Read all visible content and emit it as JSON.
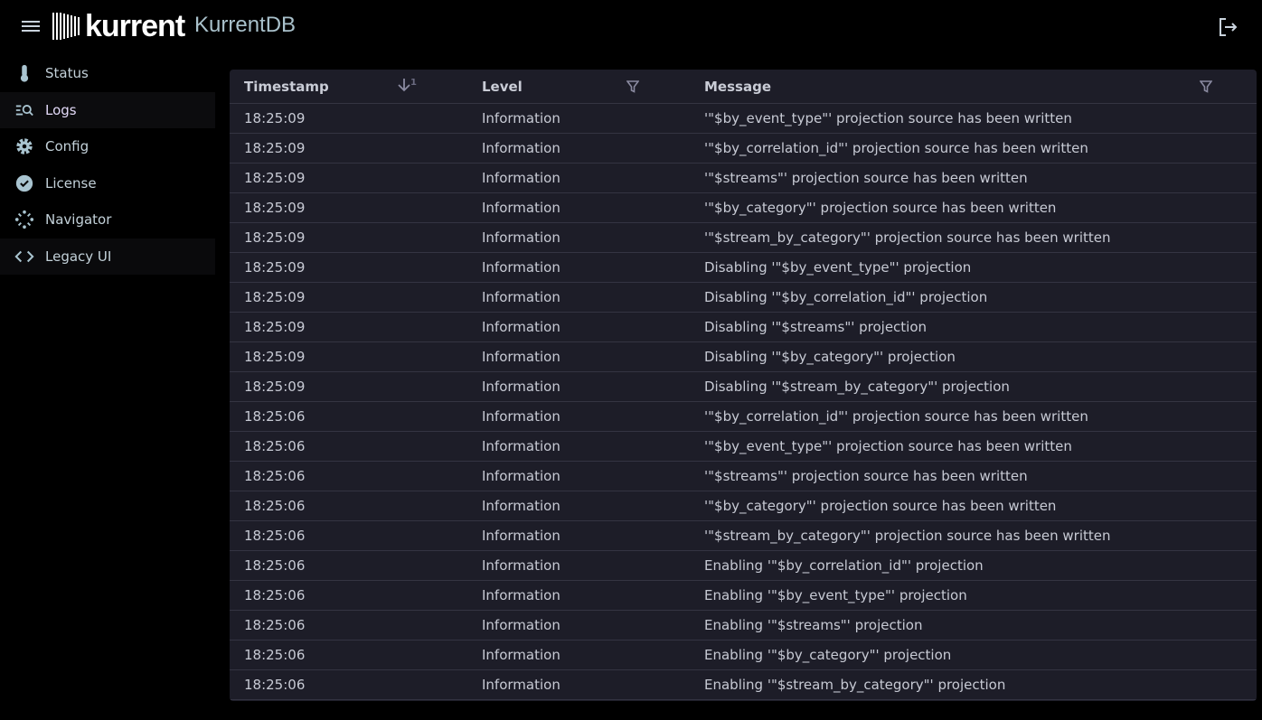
{
  "header": {
    "brand": "kurrent",
    "product": "KurrentDB"
  },
  "sidebar": {
    "items": [
      {
        "label": "Status",
        "icon": "thermometer-icon"
      },
      {
        "label": "Logs",
        "icon": "log-search-icon",
        "active": true
      },
      {
        "label": "Config",
        "icon": "gear-icon"
      },
      {
        "label": "License",
        "icon": "verified-badge-icon"
      },
      {
        "label": "Navigator",
        "icon": "navigator-icon"
      },
      {
        "label": "Legacy UI",
        "icon": "code-icon"
      }
    ]
  },
  "table": {
    "columns": {
      "timestamp": "Timestamp",
      "level": "Level",
      "message": "Message",
      "sort_index": "1"
    },
    "rows": [
      [
        "18:25:09",
        "Information",
        "'\"$by_event_type\"' projection source has been written"
      ],
      [
        "18:25:09",
        "Information",
        "'\"$by_correlation_id\"' projection source has been written"
      ],
      [
        "18:25:09",
        "Information",
        "'\"$streams\"' projection source has been written"
      ],
      [
        "18:25:09",
        "Information",
        "'\"$by_category\"' projection source has been written"
      ],
      [
        "18:25:09",
        "Information",
        "'\"$stream_by_category\"' projection source has been written"
      ],
      [
        "18:25:09",
        "Information",
        "Disabling '\"$by_event_type\"' projection"
      ],
      [
        "18:25:09",
        "Information",
        "Disabling '\"$by_correlation_id\"' projection"
      ],
      [
        "18:25:09",
        "Information",
        "Disabling '\"$streams\"' projection"
      ],
      [
        "18:25:09",
        "Information",
        "Disabling '\"$by_category\"' projection"
      ],
      [
        "18:25:09",
        "Information",
        "Disabling '\"$stream_by_category\"' projection"
      ],
      [
        "18:25:06",
        "Information",
        "'\"$by_correlation_id\"' projection source has been written"
      ],
      [
        "18:25:06",
        "Information",
        "'\"$by_event_type\"' projection source has been written"
      ],
      [
        "18:25:06",
        "Information",
        "'\"$streams\"' projection source has been written"
      ],
      [
        "18:25:06",
        "Information",
        "'\"$by_category\"' projection source has been written"
      ],
      [
        "18:25:06",
        "Information",
        "'\"$stream_by_category\"' projection source has been written"
      ],
      [
        "18:25:06",
        "Information",
        "Enabling '\"$by_correlation_id\"' projection"
      ],
      [
        "18:25:06",
        "Information",
        "Enabling '\"$by_event_type\"' projection"
      ],
      [
        "18:25:06",
        "Information",
        "Enabling '\"$streams\"' projection"
      ],
      [
        "18:25:06",
        "Information",
        "Enabling '\"$by_category\"' projection"
      ],
      [
        "18:25:06",
        "Information",
        "Enabling '\"$stream_by_category\"' projection"
      ]
    ]
  }
}
